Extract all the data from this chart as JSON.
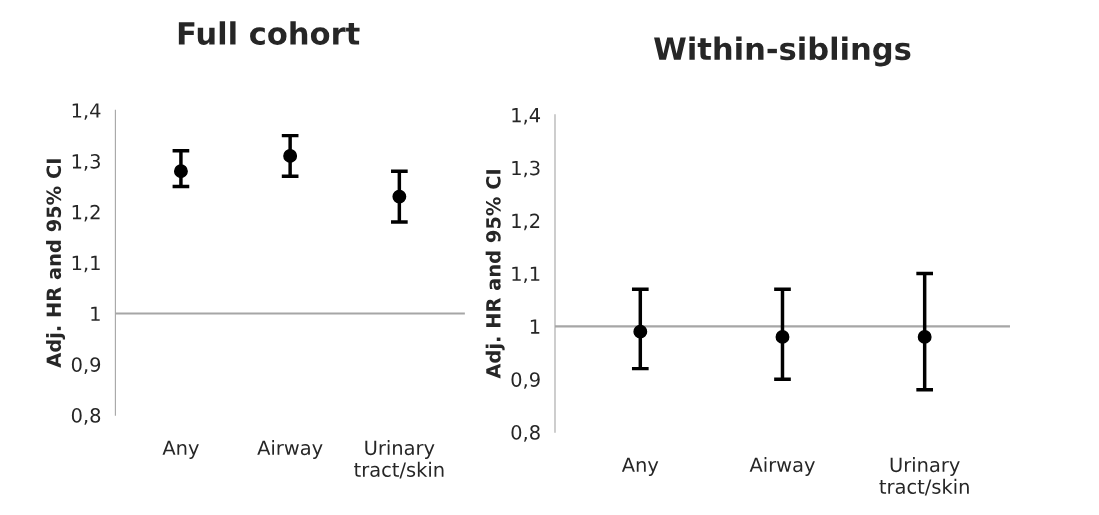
{
  "chart_data": [
    {
      "type": "scatter",
      "title": "Full cohort",
      "ylabel": "Adj. HR and 95% CI",
      "categories": [
        "Any",
        "Airway",
        "Urinary\ntract/skin"
      ],
      "series": [
        {
          "color": "#000000",
          "values": [
            1.28,
            1.31,
            1.23
          ],
          "errors": [
            [
              1.25,
              1.32
            ],
            [
              1.27,
              1.35
            ],
            [
              1.18,
              1.28
            ]
          ]
        }
      ],
      "ylim": [
        0.8,
        1.4
      ],
      "yticks": [
        {
          "value": 0.8,
          "label": "0,8"
        },
        {
          "value": 0.9,
          "label": "0,9"
        },
        {
          "value": 1,
          "label": "1"
        },
        {
          "value": 1.1,
          "label": "1,1"
        },
        {
          "value": 1.2,
          "label": "1,2"
        },
        {
          "value": 1.3,
          "label": "1,3"
        },
        {
          "value": 1.4,
          "label": "1,4"
        }
      ],
      "ref_lines": [
        {
          "axis": "y",
          "value": 1,
          "color": "#a6a6a6"
        }
      ],
      "marker": "circle",
      "grid": false,
      "legend": false
    },
    {
      "type": "scatter",
      "title": "Within-siblings",
      "ylabel": "Adj. HR and 95% CI",
      "categories": [
        "Any",
        "Airway",
        "Urinary\ntract/skin"
      ],
      "series": [
        {
          "color": "#000000",
          "values": [
            0.99,
            0.98,
            0.98
          ],
          "errors": [
            [
              0.92,
              1.07
            ],
            [
              0.9,
              1.07
            ],
            [
              0.88,
              1.1
            ]
          ]
        }
      ],
      "ylim": [
        0.8,
        1.4
      ],
      "yticks": [
        {
          "value": 0.8,
          "label": "0,8"
        },
        {
          "value": 0.9,
          "label": "0,9"
        },
        {
          "value": 1,
          "label": "1"
        },
        {
          "value": 1.1,
          "label": "1,1"
        },
        {
          "value": 1.2,
          "label": "1,2"
        },
        {
          "value": 1.3,
          "label": "1,3"
        },
        {
          "value": 1.4,
          "label": "1,4"
        }
      ],
      "ref_lines": [
        {
          "axis": "y",
          "value": 1,
          "color": "#a6a6a6"
        }
      ],
      "marker": "circle",
      "grid": false,
      "legend": false
    }
  ]
}
